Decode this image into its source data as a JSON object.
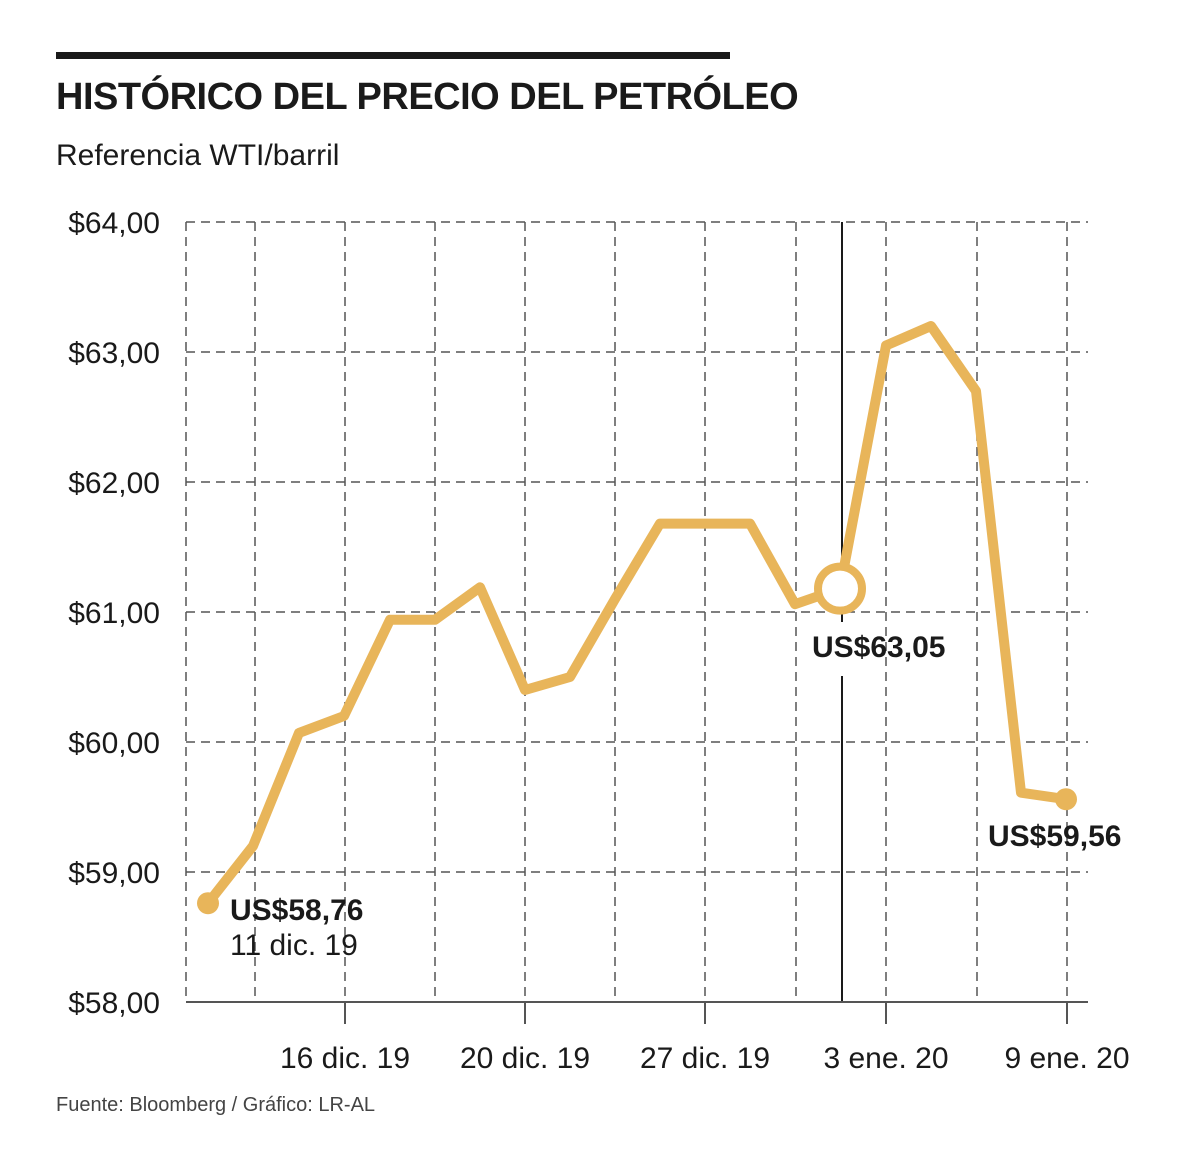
{
  "title": "HISTÓRICO DEL PRECIO DEL PETRÓLEO",
  "subtitle": "Referencia WTI/barril",
  "source": "Fuente: Bloomberg / Gráfico: LR-AL",
  "colors": {
    "line": "#e8b55a",
    "text": "#1a1a1a",
    "grid": "#555555"
  },
  "chart_data": {
    "type": "line",
    "ylim": [
      58,
      64
    ],
    "yticks": [
      "$58,00",
      "$59,00",
      "$60,00",
      "$61,00",
      "$62,00",
      "$63,00",
      "$64,00"
    ],
    "xticks": [
      "16 dic. 19",
      "20 dic. 19",
      "27 dic. 19",
      "3 ene. 20",
      "9 ene. 20"
    ],
    "grid": true,
    "series": [
      {
        "values": [
          58.76,
          59.2,
          60.07,
          60.2,
          60.94,
          60.94,
          61.19,
          60.4,
          60.5,
          61.1,
          61.68,
          61.68,
          61.68,
          61.06,
          61.18,
          63.05,
          63.2,
          62.7,
          59.61,
          59.56
        ]
      }
    ],
    "annotations": [
      {
        "value": "US$58,76",
        "date": "11 dic. 19"
      },
      {
        "value": "US$63,05"
      },
      {
        "value": "US$59,56"
      }
    ]
  }
}
